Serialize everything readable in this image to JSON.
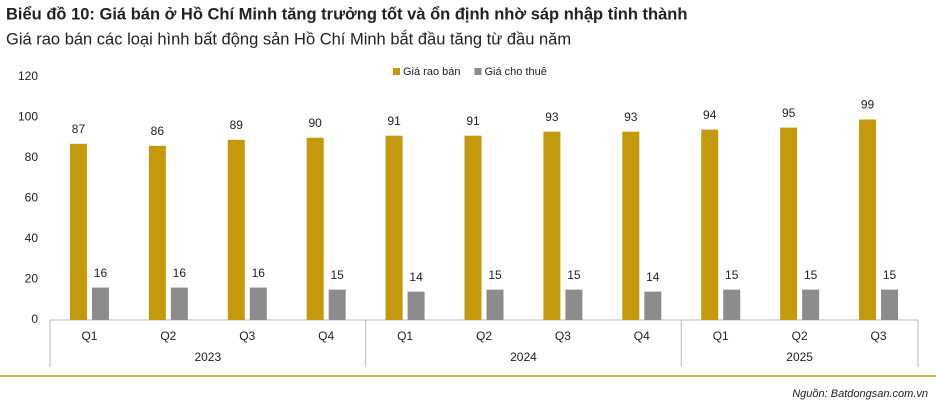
{
  "title": "Biểu đồ 10: Giá bán ở Hồ Chí Minh tăng trưởng tốt và ổn định nhờ sáp nhập tỉnh thành",
  "subtitle": "Giá rao bán các loại hình bất động sản Hồ Chí Minh bắt đầu tăng từ đầu năm",
  "source": "Nguồn: Batdongsan.com.vn",
  "chart_data": {
    "type": "bar",
    "groups": [
      {
        "name": "2023",
        "categories": [
          "Q1",
          "Q2",
          "Q3",
          "Q4"
        ]
      },
      {
        "name": "2024",
        "categories": [
          "Q1",
          "Q2",
          "Q3",
          "Q4"
        ]
      },
      {
        "name": "2025",
        "categories": [
          "Q1",
          "Q2",
          "Q3"
        ]
      }
    ],
    "series": [
      {
        "name": "Giá rao bán",
        "color": "#c49a0c",
        "values": [
          87,
          86,
          89,
          90,
          91,
          91,
          93,
          93,
          94,
          95,
          99
        ]
      },
      {
        "name": "Giá cho thuê",
        "color": "#8c8c8c",
        "values": [
          16,
          16,
          16,
          15,
          14,
          15,
          15,
          14,
          15,
          15,
          15
        ]
      }
    ],
    "ylim": [
      0,
      120
    ],
    "yticks": [
      0,
      20,
      40,
      60,
      80,
      100,
      120
    ],
    "grid": false,
    "legend": "top"
  }
}
